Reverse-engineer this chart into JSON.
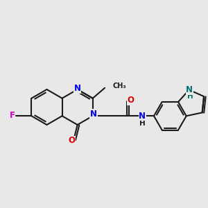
{
  "bg": "#e8e8e8",
  "bc": "#1a1a1a",
  "bw": 1.5,
  "NC": "#0000ee",
  "OC": "#dd0000",
  "FC": "#cc00cc",
  "NHC": "#007070",
  "bl": 0.85,
  "xlim": [
    0,
    10
  ],
  "ylim": [
    3.0,
    8.0
  ]
}
